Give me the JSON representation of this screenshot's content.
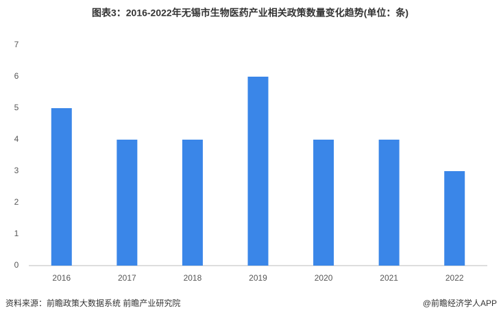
{
  "chart_data": {
    "type": "bar",
    "title": "图表3：2016-2022年无锡市生物医药产业相关政策数量变化趋势(单位：条)",
    "categories": [
      "2016",
      "2017",
      "2018",
      "2019",
      "2020",
      "2021",
      "2022"
    ],
    "values": [
      5,
      4,
      4,
      6,
      4,
      4,
      3
    ],
    "color": "#3a86e8",
    "ylim": [
      0,
      7
    ],
    "yticks": [
      0,
      1,
      2,
      3,
      4,
      5,
      6,
      7
    ],
    "grid": false,
    "source": "资料来源：前瞻政策大数据系统 前瞻产业研究院",
    "credit": "@前瞻经济学人APP"
  }
}
